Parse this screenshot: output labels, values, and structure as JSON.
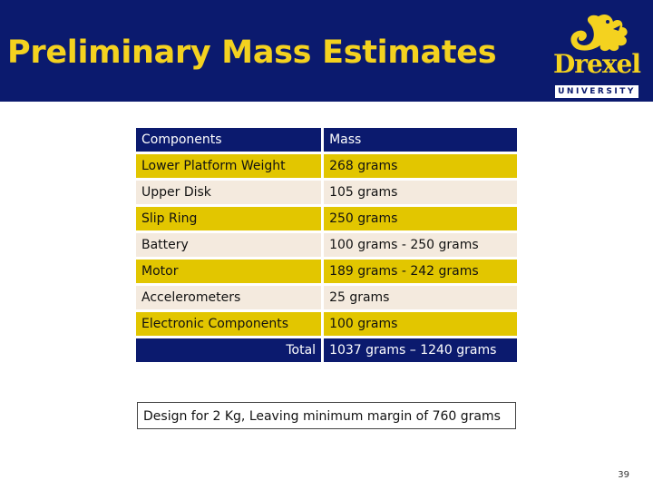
{
  "slide": {
    "title": "Preliminary Mass Estimates",
    "page_number": "39"
  },
  "logo": {
    "word": "Drexel",
    "subword": "UNIVERSITY"
  },
  "table": {
    "header": [
      "Components",
      "Mass"
    ],
    "rows": [
      {
        "component": "Lower Platform Weight",
        "mass": "268 grams"
      },
      {
        "component": "Upper Disk",
        "mass": "105 grams"
      },
      {
        "component": "Slip Ring",
        "mass": "250 grams"
      },
      {
        "component": "Battery",
        "mass": "100 grams - 250 grams"
      },
      {
        "component": "Motor",
        "mass": "189 grams - 242 grams"
      },
      {
        "component": "Accelerometers",
        "mass": "25 grams"
      },
      {
        "component": "Electronic Components",
        "mass": "100 grams"
      }
    ],
    "total_label": "Total",
    "total_value": "1037 grams – 1240 grams"
  },
  "note": "Design for 2 Kg, Leaving minimum margin of 760 grams",
  "colors": {
    "navy": "#0b1a6e",
    "gold": "#f4d21f",
    "row_yellow": "#e2c600",
    "row_cream": "#f4eade"
  }
}
